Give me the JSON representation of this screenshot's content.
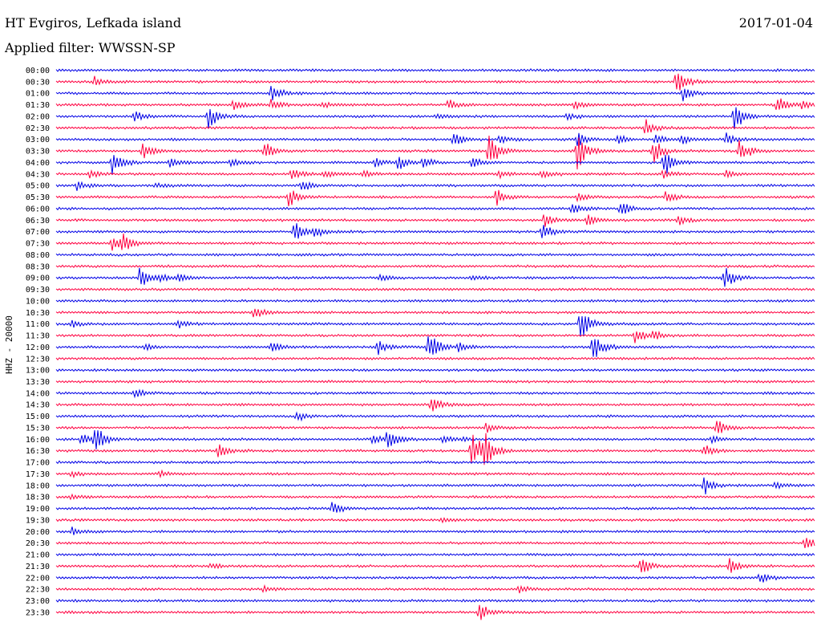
{
  "header": {
    "station": "HT Evgiros, Lefkada island",
    "date": "2017-01-04",
    "filter": "Applied filter: WWSSN-SP"
  },
  "chart_data": {
    "type": "line",
    "title": "HT Evgiros, Lefkada island",
    "date": "2017-01-04",
    "filter": "WWSSN-SP",
    "ylabel": "HHZ - 20000",
    "row_interval_minutes": 30,
    "rows": [
      "00:00",
      "00:30",
      "01:00",
      "01:30",
      "02:00",
      "02:30",
      "03:00",
      "03:30",
      "04:00",
      "04:30",
      "05:00",
      "05:30",
      "06:00",
      "06:30",
      "07:00",
      "07:30",
      "08:00",
      "08:30",
      "09:00",
      "09:30",
      "10:00",
      "10:30",
      "11:00",
      "11:30",
      "12:00",
      "12:30",
      "13:00",
      "13:30",
      "14:00",
      "14:30",
      "15:00",
      "15:30",
      "16:00",
      "16:30",
      "17:00",
      "17:30",
      "18:00",
      "18:30",
      "19:00",
      "19:30",
      "20:00",
      "20:30",
      "21:00",
      "21:30",
      "22:00",
      "22:30",
      "23:00",
      "23:30"
    ],
    "colors": [
      "#0000e6",
      "#ff0040"
    ],
    "events_note": "Relative amplitude of visible bursts, by row index and minute within the 30-minute row",
    "events": [
      {
        "row": 1,
        "t": 1.5,
        "a": 0.5
      },
      {
        "row": 1,
        "t": 24.5,
        "a": 1.6
      },
      {
        "row": 2,
        "t": 8.5,
        "a": 0.9
      },
      {
        "row": 2,
        "t": 24.8,
        "a": 0.8
      },
      {
        "row": 3,
        "t": 7,
        "a": 0.5
      },
      {
        "row": 3,
        "t": 8.5,
        "a": 0.5
      },
      {
        "row": 3,
        "t": 10.5,
        "a": 0.4
      },
      {
        "row": 3,
        "t": 15.5,
        "a": 0.5
      },
      {
        "row": 3,
        "t": 20.5,
        "a": 0.4
      },
      {
        "row": 3,
        "t": 28.5,
        "a": 0.9
      },
      {
        "row": 3,
        "t": 29.5,
        "a": 0.4
      },
      {
        "row": 4,
        "t": 3.1,
        "a": 0.6
      },
      {
        "row": 4,
        "t": 6,
        "a": 1.4
      },
      {
        "row": 4,
        "t": 15,
        "a": 0.3
      },
      {
        "row": 4,
        "t": 20.2,
        "a": 0.4
      },
      {
        "row": 4,
        "t": 26.8,
        "a": 1.5
      },
      {
        "row": 5,
        "t": 23.3,
        "a": 0.9
      },
      {
        "row": 6,
        "t": 15.7,
        "a": 0.7
      },
      {
        "row": 6,
        "t": 17.5,
        "a": 0.5
      },
      {
        "row": 6,
        "t": 20.6,
        "a": 0.8
      },
      {
        "row": 6,
        "t": 22.2,
        "a": 0.5
      },
      {
        "row": 6,
        "t": 23.7,
        "a": 0.6
      },
      {
        "row": 6,
        "t": 24.7,
        "a": 0.5
      },
      {
        "row": 6,
        "t": 26.5,
        "a": 0.7
      },
      {
        "row": 7,
        "t": 3.4,
        "a": 0.8
      },
      {
        "row": 7,
        "t": 8.2,
        "a": 0.9
      },
      {
        "row": 7,
        "t": 17.1,
        "a": 1.9
      },
      {
        "row": 7,
        "t": 20.6,
        "a": 1.9
      },
      {
        "row": 7,
        "t": 23.6,
        "a": 1.3
      },
      {
        "row": 7,
        "t": 27,
        "a": 1.3
      },
      {
        "row": 8,
        "t": 2.2,
        "a": 1.4
      },
      {
        "row": 8,
        "t": 4.5,
        "a": 0.6
      },
      {
        "row": 8,
        "t": 6.9,
        "a": 0.5
      },
      {
        "row": 8,
        "t": 13.5,
        "a": 0.8
      },
      {
        "row": 8,
        "t": 14.5,
        "a": 0.6
      },
      {
        "row": 8,
        "t": 12.6,
        "a": 0.5
      },
      {
        "row": 8,
        "t": 16.4,
        "a": 0.6
      },
      {
        "row": 8,
        "t": 24,
        "a": 1.5
      },
      {
        "row": 9,
        "t": 1.3,
        "a": 0.4
      },
      {
        "row": 9,
        "t": 9.3,
        "a": 0.7
      },
      {
        "row": 9,
        "t": 10.6,
        "a": 0.4
      },
      {
        "row": 9,
        "t": 12.1,
        "a": 0.4
      },
      {
        "row": 9,
        "t": 17.5,
        "a": 0.5
      },
      {
        "row": 9,
        "t": 19.2,
        "a": 0.5
      },
      {
        "row": 9,
        "t": 24,
        "a": 0.5
      },
      {
        "row": 9,
        "t": 26.5,
        "a": 0.4
      },
      {
        "row": 10,
        "t": 0.8,
        "a": 0.5
      },
      {
        "row": 10,
        "t": 3.9,
        "a": 0.3
      },
      {
        "row": 10,
        "t": 9.7,
        "a": 0.6
      },
      {
        "row": 11,
        "t": 9.2,
        "a": 1.0
      },
      {
        "row": 11,
        "t": 17.4,
        "a": 0.9
      },
      {
        "row": 11,
        "t": 20.6,
        "a": 0.5
      },
      {
        "row": 11,
        "t": 24.1,
        "a": 0.7
      },
      {
        "row": 12,
        "t": 20.4,
        "a": 0.6
      },
      {
        "row": 12,
        "t": 22.3,
        "a": 1.0
      },
      {
        "row": 13,
        "t": 19.3,
        "a": 0.8
      },
      {
        "row": 13,
        "t": 21,
        "a": 0.7
      },
      {
        "row": 13,
        "t": 24.6,
        "a": 0.5
      },
      {
        "row": 14,
        "t": 9.4,
        "a": 1.2
      },
      {
        "row": 14,
        "t": 10.2,
        "a": 0.6
      },
      {
        "row": 14,
        "t": 19.2,
        "a": 1.0
      },
      {
        "row": 15,
        "t": 2.2,
        "a": 1.0
      },
      {
        "row": 15,
        "t": 2.6,
        "a": 0.9
      },
      {
        "row": 18,
        "t": 3.3,
        "a": 1.3
      },
      {
        "row": 18,
        "t": 4.1,
        "a": 0.4
      },
      {
        "row": 18,
        "t": 4.8,
        "a": 0.4
      },
      {
        "row": 18,
        "t": 12.8,
        "a": 0.4
      },
      {
        "row": 18,
        "t": 16.4,
        "a": 0.3
      },
      {
        "row": 18,
        "t": 26.4,
        "a": 1.6
      },
      {
        "row": 21,
        "t": 7.8,
        "a": 0.7
      },
      {
        "row": 22,
        "t": 0.6,
        "a": 0.3
      },
      {
        "row": 22,
        "t": 4.8,
        "a": 0.4
      },
      {
        "row": 22,
        "t": 20.7,
        "a": 1.9
      },
      {
        "row": 23,
        "t": 22.9,
        "a": 0.9
      },
      {
        "row": 23,
        "t": 23.6,
        "a": 0.5
      },
      {
        "row": 24,
        "t": 3.5,
        "a": 0.3
      },
      {
        "row": 24,
        "t": 8.5,
        "a": 0.7
      },
      {
        "row": 24,
        "t": 12.7,
        "a": 0.7
      },
      {
        "row": 24,
        "t": 14.7,
        "a": 1.9
      },
      {
        "row": 24,
        "t": 15.9,
        "a": 0.4
      },
      {
        "row": 24,
        "t": 21.2,
        "a": 1.6
      },
      {
        "row": 28,
        "t": 3.1,
        "a": 0.5
      },
      {
        "row": 29,
        "t": 14.8,
        "a": 0.9
      },
      {
        "row": 30,
        "t": 9.5,
        "a": 0.5
      },
      {
        "row": 31,
        "t": 17,
        "a": 0.5
      },
      {
        "row": 31,
        "t": 26.1,
        "a": 1.0
      },
      {
        "row": 32,
        "t": 1.0,
        "a": 0.9
      },
      {
        "row": 32,
        "t": 1.5,
        "a": 1.6
      },
      {
        "row": 32,
        "t": 12.5,
        "a": 0.6
      },
      {
        "row": 32,
        "t": 13.1,
        "a": 1.2
      },
      {
        "row": 32,
        "t": 15.3,
        "a": 0.4
      },
      {
        "row": 32,
        "t": 16.1,
        "a": 0.3
      },
      {
        "row": 32,
        "t": 25.9,
        "a": 0.4
      },
      {
        "row": 33,
        "t": 6.4,
        "a": 1.0
      },
      {
        "row": 33,
        "t": 16.4,
        "a": 2.4
      },
      {
        "row": 33,
        "t": 16.9,
        "a": 1.9
      },
      {
        "row": 33,
        "t": 25.6,
        "a": 0.6
      },
      {
        "row": 35,
        "t": 0.6,
        "a": 0.3
      },
      {
        "row": 35,
        "t": 4.1,
        "a": 0.3
      },
      {
        "row": 36,
        "t": 25.6,
        "a": 1.0
      },
      {
        "row": 36,
        "t": 28.4,
        "a": 0.5
      },
      {
        "row": 37,
        "t": 0.6,
        "a": 0.3
      },
      {
        "row": 38,
        "t": 10.9,
        "a": 0.8
      },
      {
        "row": 39,
        "t": 15.2,
        "a": 0.3
      },
      {
        "row": 40,
        "t": 0.6,
        "a": 0.4
      },
      {
        "row": 41,
        "t": 29.6,
        "a": 0.8
      },
      {
        "row": 43,
        "t": 23.1,
        "a": 1.1
      },
      {
        "row": 43,
        "t": 26.6,
        "a": 1.0
      },
      {
        "row": 43,
        "t": 6.1,
        "a": 0.3
      },
      {
        "row": 44,
        "t": 27.8,
        "a": 0.7
      },
      {
        "row": 45,
        "t": 18.3,
        "a": 0.4
      },
      {
        "row": 45,
        "t": 8.2,
        "a": 0.3
      },
      {
        "row": 47,
        "t": 16.7,
        "a": 1.0
      }
    ]
  }
}
